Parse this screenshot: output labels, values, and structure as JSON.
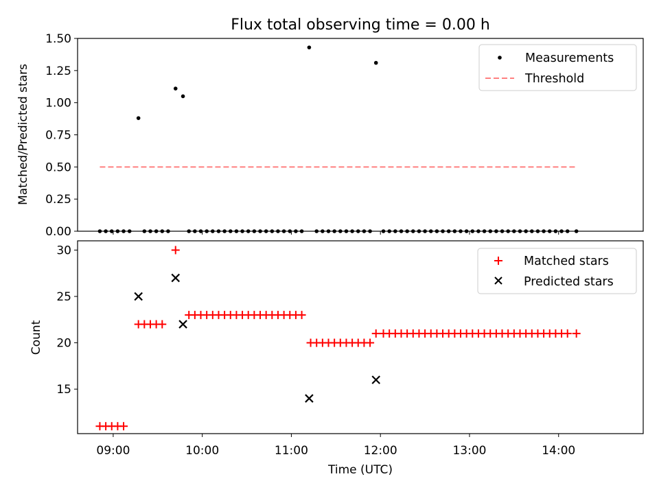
{
  "chart_data": [
    {
      "type": "scatter",
      "title": "Flux total observing time = 0.00 h",
      "xlabel": "",
      "ylabel": "Matched/Predicted stars",
      "ylim": [
        0,
        1.5
      ],
      "yticks": [
        "0.00",
        "0.25",
        "0.50",
        "0.75",
        "1.00",
        "1.25",
        "1.50"
      ],
      "legend_position": "top-right",
      "series": [
        {
          "name": "Measurements",
          "color": "#000000",
          "marker": "dot",
          "points": [
            [
              "08:51",
              0
            ],
            [
              "08:55",
              0
            ],
            [
              "08:59",
              0
            ],
            [
              "09:03",
              0
            ],
            [
              "09:07",
              0
            ],
            [
              "09:11",
              0
            ],
            [
              "09:17",
              0.88
            ],
            [
              "09:21",
              0
            ],
            [
              "09:25",
              0
            ],
            [
              "09:29",
              0
            ],
            [
              "09:33",
              0
            ],
            [
              "09:37",
              0
            ],
            [
              "09:42",
              1.11
            ],
            [
              "09:47",
              1.05
            ],
            [
              "09:51",
              0
            ],
            [
              "09:55",
              0
            ],
            [
              "09:59",
              0
            ],
            [
              "10:03",
              0
            ],
            [
              "10:07",
              0
            ],
            [
              "10:11",
              0
            ],
            [
              "10:15",
              0
            ],
            [
              "10:19",
              0
            ],
            [
              "10:23",
              0
            ],
            [
              "10:27",
              0
            ],
            [
              "10:31",
              0
            ],
            [
              "10:35",
              0
            ],
            [
              "10:39",
              0
            ],
            [
              "10:43",
              0
            ],
            [
              "10:47",
              0
            ],
            [
              "10:51",
              0
            ],
            [
              "10:55",
              0
            ],
            [
              "10:59",
              0
            ],
            [
              "11:03",
              0
            ],
            [
              "11:07",
              0
            ],
            [
              "11:12",
              1.43
            ],
            [
              "11:17",
              0
            ],
            [
              "11:21",
              0
            ],
            [
              "11:25",
              0
            ],
            [
              "11:29",
              0
            ],
            [
              "11:33",
              0
            ],
            [
              "11:37",
              0
            ],
            [
              "11:41",
              0
            ],
            [
              "11:45",
              0
            ],
            [
              "11:49",
              0
            ],
            [
              "11:53",
              0
            ],
            [
              "11:57",
              1.31
            ],
            [
              "12:02",
              0
            ],
            [
              "12:06",
              0
            ],
            [
              "12:10",
              0
            ],
            [
              "12:14",
              0
            ],
            [
              "12:18",
              0
            ],
            [
              "12:22",
              0
            ],
            [
              "12:26",
              0
            ],
            [
              "12:30",
              0
            ],
            [
              "12:34",
              0
            ],
            [
              "12:38",
              0
            ],
            [
              "12:42",
              0
            ],
            [
              "12:46",
              0
            ],
            [
              "12:50",
              0
            ],
            [
              "12:54",
              0
            ],
            [
              "12:58",
              0
            ],
            [
              "13:02",
              0
            ],
            [
              "13:06",
              0
            ],
            [
              "13:10",
              0
            ],
            [
              "13:14",
              0
            ],
            [
              "13:18",
              0
            ],
            [
              "13:22",
              0
            ],
            [
              "13:26",
              0
            ],
            [
              "13:30",
              0
            ],
            [
              "13:34",
              0
            ],
            [
              "13:38",
              0
            ],
            [
              "13:42",
              0
            ],
            [
              "13:46",
              0
            ],
            [
              "13:50",
              0
            ],
            [
              "13:54",
              0
            ],
            [
              "13:58",
              0
            ],
            [
              "14:02",
              0
            ],
            [
              "14:06",
              0
            ],
            [
              "14:12",
              0
            ]
          ]
        },
        {
          "name": "Threshold",
          "color": "#ff7f7f",
          "style": "dashed-line",
          "points": [
            [
              "08:51",
              0.5
            ],
            [
              "14:12",
              0.5
            ]
          ]
        }
      ]
    },
    {
      "type": "scatter",
      "title": "",
      "xlabel": "Time (UTC)",
      "ylabel": "Count",
      "ylim": [
        10.2,
        31.0
      ],
      "xlim": [
        "08:36",
        "14:57"
      ],
      "yticks": [
        "15",
        "20",
        "25",
        "30"
      ],
      "xticks": [
        "09:00",
        "10:00",
        "11:00",
        "12:00",
        "13:00",
        "14:00"
      ],
      "legend_position": "top-right",
      "series": [
        {
          "name": "Matched stars",
          "color": "#ff0000",
          "marker": "plus",
          "points": [
            [
              "08:51",
              11
            ],
            [
              "08:55",
              11
            ],
            [
              "08:59",
              11
            ],
            [
              "09:03",
              11
            ],
            [
              "09:07",
              11
            ],
            [
              "09:17",
              22
            ],
            [
              "09:21",
              22
            ],
            [
              "09:25",
              22
            ],
            [
              "09:29",
              22
            ],
            [
              "09:33",
              22
            ],
            [
              "09:42",
              30
            ],
            [
              "09:51",
              23
            ],
            [
              "09:55",
              23
            ],
            [
              "09:59",
              23
            ],
            [
              "10:03",
              23
            ],
            [
              "10:07",
              23
            ],
            [
              "10:11",
              23
            ],
            [
              "10:15",
              23
            ],
            [
              "10:19",
              23
            ],
            [
              "10:23",
              23
            ],
            [
              "10:27",
              23
            ],
            [
              "10:31",
              23
            ],
            [
              "10:35",
              23
            ],
            [
              "10:39",
              23
            ],
            [
              "10:43",
              23
            ],
            [
              "10:47",
              23
            ],
            [
              "10:51",
              23
            ],
            [
              "10:55",
              23
            ],
            [
              "10:59",
              23
            ],
            [
              "11:03",
              23
            ],
            [
              "11:07",
              23
            ],
            [
              "11:13",
              20
            ],
            [
              "11:17",
              20
            ],
            [
              "11:21",
              20
            ],
            [
              "11:25",
              20
            ],
            [
              "11:29",
              20
            ],
            [
              "11:33",
              20
            ],
            [
              "11:37",
              20
            ],
            [
              "11:41",
              20
            ],
            [
              "11:45",
              20
            ],
            [
              "11:49",
              20
            ],
            [
              "11:53",
              20
            ],
            [
              "11:57",
              21
            ],
            [
              "12:02",
              21
            ],
            [
              "12:06",
              21
            ],
            [
              "12:10",
              21
            ],
            [
              "12:14",
              21
            ],
            [
              "12:18",
              21
            ],
            [
              "12:22",
              21
            ],
            [
              "12:26",
              21
            ],
            [
              "12:30",
              21
            ],
            [
              "12:34",
              21
            ],
            [
              "12:38",
              21
            ],
            [
              "12:42",
              21
            ],
            [
              "12:46",
              21
            ],
            [
              "12:50",
              21
            ],
            [
              "12:54",
              21
            ],
            [
              "12:58",
              21
            ],
            [
              "13:02",
              21
            ],
            [
              "13:06",
              21
            ],
            [
              "13:10",
              21
            ],
            [
              "13:14",
              21
            ],
            [
              "13:18",
              21
            ],
            [
              "13:22",
              21
            ],
            [
              "13:26",
              21
            ],
            [
              "13:30",
              21
            ],
            [
              "13:34",
              21
            ],
            [
              "13:38",
              21
            ],
            [
              "13:42",
              21
            ],
            [
              "13:46",
              21
            ],
            [
              "13:50",
              21
            ],
            [
              "13:54",
              21
            ],
            [
              "13:58",
              21
            ],
            [
              "14:02",
              21
            ],
            [
              "14:06",
              21
            ],
            [
              "14:12",
              21
            ]
          ]
        },
        {
          "name": "Predicted stars",
          "color": "#000000",
          "marker": "x",
          "points": [
            [
              "09:17",
              25
            ],
            [
              "09:42",
              27
            ],
            [
              "09:47",
              22
            ],
            [
              "11:12",
              14
            ],
            [
              "11:57",
              16
            ]
          ]
        }
      ]
    }
  ]
}
